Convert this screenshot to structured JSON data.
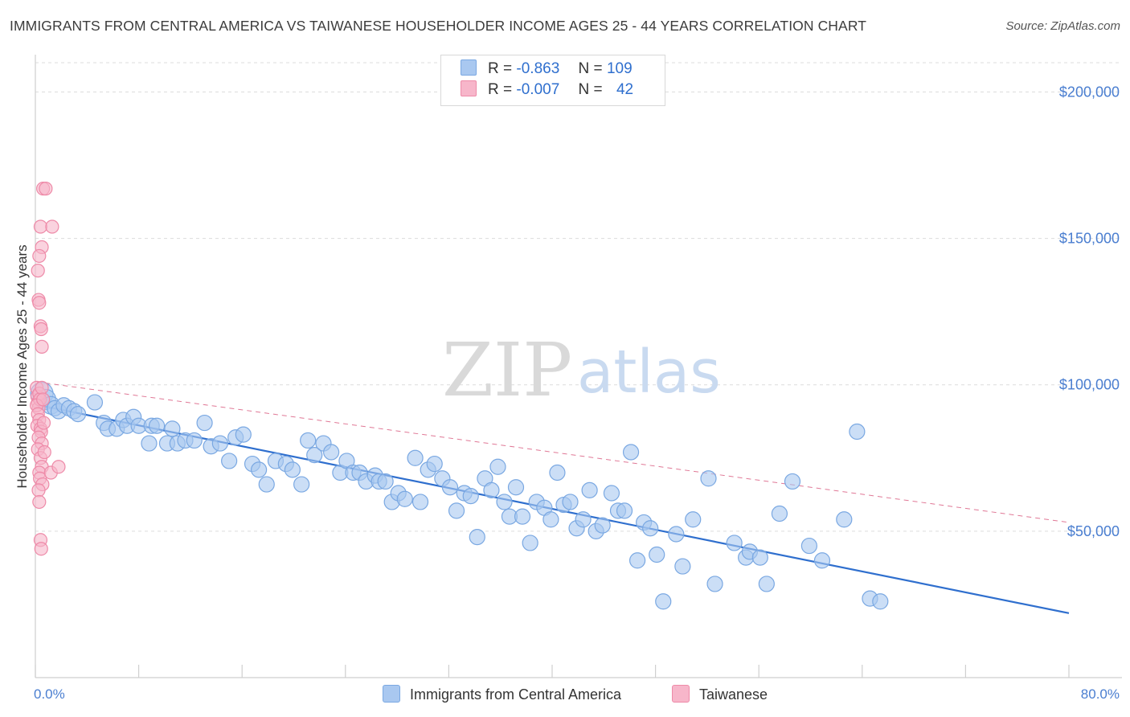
{
  "title": "IMMIGRANTS FROM CENTRAL AMERICA VS TAIWANESE HOUSEHOLDER INCOME AGES 25 - 44 YEARS CORRELATION CHART",
  "source": "Source: ZipAtlas.com",
  "watermark": {
    "zip": "ZIP",
    "atlas": "atlas"
  },
  "legend": {
    "rows": [
      {
        "r_label": "R =",
        "r_value": "-0.863",
        "n_label": "N =",
        "n_value": "109",
        "color": "#a9c8f0"
      },
      {
        "r_label": "R =",
        "r_value": "-0.007",
        "n_label": "N =",
        "n_value": "42",
        "color": "#f7b6ca"
      }
    ]
  },
  "bottom_legend": [
    {
      "label": "Immigrants from Central America",
      "color": "#a9c8f0"
    },
    {
      "label": "Taiwanese",
      "color": "#f7b6ca"
    }
  ],
  "colors": {
    "blue_fill": "#a9c8f0",
    "blue_stroke": "#7aa8e2",
    "blue_line": "#2f6fce",
    "pink_fill": "#f7b6ca",
    "pink_stroke": "#ee8aa8",
    "pink_line": "#e07896",
    "tick_text": "#4a7ed0",
    "grid": "#dcdcdc"
  },
  "chart_data": {
    "type": "scatter",
    "xlabel": "",
    "ylabel": "Householder Income Ages 25 - 44 years",
    "xlim": [
      0,
      80
    ],
    "ylim": [
      0,
      210000
    ],
    "x_tick_labels": [
      {
        "x": 0,
        "label": "0.0%"
      },
      {
        "x": 80,
        "label": "80.0%"
      }
    ],
    "y_ticks": [
      {
        "y": 50000,
        "label": "$50,000"
      },
      {
        "y": 100000,
        "label": "$100,000"
      },
      {
        "y": 150000,
        "label": "$150,000"
      },
      {
        "y": 200000,
        "label": "$200,000"
      }
    ],
    "grid": true,
    "series": [
      {
        "name": "Immigrants from Central America",
        "trend": {
          "x": [
            0.3,
            80
          ],
          "y": [
            93000,
            22000
          ],
          "style": "solid"
        },
        "points": [
          [
            0.5,
            97000
          ],
          [
            0.8,
            95000
          ],
          [
            1.2,
            93000
          ],
          [
            1.5,
            92000
          ],
          [
            1.8,
            91000
          ],
          [
            2.2,
            93000
          ],
          [
            2.6,
            92000
          ],
          [
            3.0,
            91000
          ],
          [
            3.3,
            90000
          ],
          [
            4.6,
            94000
          ],
          [
            5.3,
            87000
          ],
          [
            5.6,
            85000
          ],
          [
            6.3,
            85000
          ],
          [
            6.8,
            88000
          ],
          [
            7.1,
            86000
          ],
          [
            7.6,
            89000
          ],
          [
            8.0,
            86000
          ],
          [
            8.8,
            80000
          ],
          [
            9.0,
            86000
          ],
          [
            9.4,
            86000
          ],
          [
            10.2,
            80000
          ],
          [
            10.6,
            85000
          ],
          [
            11.0,
            80000
          ],
          [
            11.6,
            81000
          ],
          [
            12.3,
            81000
          ],
          [
            13.1,
            87000
          ],
          [
            13.6,
            79000
          ],
          [
            14.3,
            80000
          ],
          [
            15.0,
            74000
          ],
          [
            15.5,
            82000
          ],
          [
            16.1,
            83000
          ],
          [
            16.8,
            73000
          ],
          [
            17.3,
            71000
          ],
          [
            17.9,
            66000
          ],
          [
            18.6,
            74000
          ],
          [
            19.4,
            73000
          ],
          [
            19.9,
            71000
          ],
          [
            20.6,
            66000
          ],
          [
            21.1,
            81000
          ],
          [
            21.6,
            76000
          ],
          [
            22.3,
            80000
          ],
          [
            22.9,
            77000
          ],
          [
            23.6,
            70000
          ],
          [
            24.1,
            74000
          ],
          [
            24.6,
            70000
          ],
          [
            25.1,
            70000
          ],
          [
            25.6,
            67000
          ],
          [
            26.3,
            69000
          ],
          [
            26.6,
            67000
          ],
          [
            27.1,
            67000
          ],
          [
            27.6,
            60000
          ],
          [
            28.1,
            63000
          ],
          [
            28.6,
            61000
          ],
          [
            29.4,
            75000
          ],
          [
            29.8,
            60000
          ],
          [
            30.4,
            71000
          ],
          [
            30.9,
            73000
          ],
          [
            31.5,
            68000
          ],
          [
            32.1,
            65000
          ],
          [
            32.6,
            57000
          ],
          [
            33.2,
            63000
          ],
          [
            33.7,
            62000
          ],
          [
            34.2,
            48000
          ],
          [
            34.8,
            68000
          ],
          [
            35.3,
            64000
          ],
          [
            35.8,
            72000
          ],
          [
            36.3,
            60000
          ],
          [
            36.7,
            55000
          ],
          [
            37.2,
            65000
          ],
          [
            37.7,
            55000
          ],
          [
            38.3,
            46000
          ],
          [
            38.8,
            60000
          ],
          [
            39.4,
            58000
          ],
          [
            39.9,
            54000
          ],
          [
            40.4,
            70000
          ],
          [
            40.9,
            59000
          ],
          [
            41.4,
            60000
          ],
          [
            41.9,
            51000
          ],
          [
            42.4,
            54000
          ],
          [
            42.9,
            64000
          ],
          [
            43.4,
            50000
          ],
          [
            43.9,
            52000
          ],
          [
            44.6,
            63000
          ],
          [
            45.1,
            57000
          ],
          [
            45.6,
            57000
          ],
          [
            46.1,
            77000
          ],
          [
            46.6,
            40000
          ],
          [
            47.1,
            53000
          ],
          [
            47.6,
            51000
          ],
          [
            48.1,
            42000
          ],
          [
            48.6,
            26000
          ],
          [
            49.6,
            49000
          ],
          [
            50.1,
            38000
          ],
          [
            50.9,
            54000
          ],
          [
            52.1,
            68000
          ],
          [
            52.6,
            32000
          ],
          [
            54.1,
            46000
          ],
          [
            55.0,
            41000
          ],
          [
            55.3,
            43000
          ],
          [
            56.1,
            41000
          ],
          [
            56.6,
            32000
          ],
          [
            57.6,
            56000
          ],
          [
            58.6,
            67000
          ],
          [
            59.9,
            45000
          ],
          [
            60.9,
            40000
          ],
          [
            62.6,
            54000
          ],
          [
            63.6,
            84000
          ],
          [
            64.6,
            27000
          ],
          [
            65.4,
            26000
          ]
        ]
      },
      {
        "name": "Taiwanese",
        "trend": {
          "x": [
            0.1,
            80
          ],
          "y": [
            101000,
            53000
          ],
          "style": "dashed"
        },
        "points": [
          [
            0.1,
            99000
          ],
          [
            0.15,
            96000
          ],
          [
            0.2,
            94000
          ],
          [
            0.25,
            92000
          ],
          [
            0.3,
            97000
          ],
          [
            0.35,
            95000
          ],
          [
            0.1,
            93000
          ],
          [
            0.2,
            90000
          ],
          [
            0.3,
            88000
          ],
          [
            0.15,
            86000
          ],
          [
            0.4,
            85000
          ],
          [
            0.45,
            84000
          ],
          [
            0.25,
            82000
          ],
          [
            0.5,
            80000
          ],
          [
            0.2,
            78000
          ],
          [
            0.4,
            75000
          ],
          [
            0.5,
            72000
          ],
          [
            0.3,
            70000
          ],
          [
            0.35,
            68000
          ],
          [
            0.55,
            66000
          ],
          [
            0.25,
            64000
          ],
          [
            0.3,
            60000
          ],
          [
            0.4,
            47000
          ],
          [
            0.45,
            44000
          ],
          [
            0.5,
            99000
          ],
          [
            0.6,
            95000
          ],
          [
            0.65,
            87000
          ],
          [
            0.7,
            77000
          ],
          [
            1.2,
            70000
          ],
          [
            1.8,
            72000
          ],
          [
            0.6,
            167000
          ],
          [
            0.8,
            167000
          ],
          [
            0.4,
            154000
          ],
          [
            1.3,
            154000
          ],
          [
            0.5,
            147000
          ],
          [
            0.3,
            144000
          ],
          [
            0.2,
            139000
          ],
          [
            0.25,
            129000
          ],
          [
            0.3,
            128000
          ],
          [
            0.4,
            120000
          ],
          [
            0.45,
            119000
          ],
          [
            0.5,
            113000
          ]
        ]
      }
    ]
  }
}
